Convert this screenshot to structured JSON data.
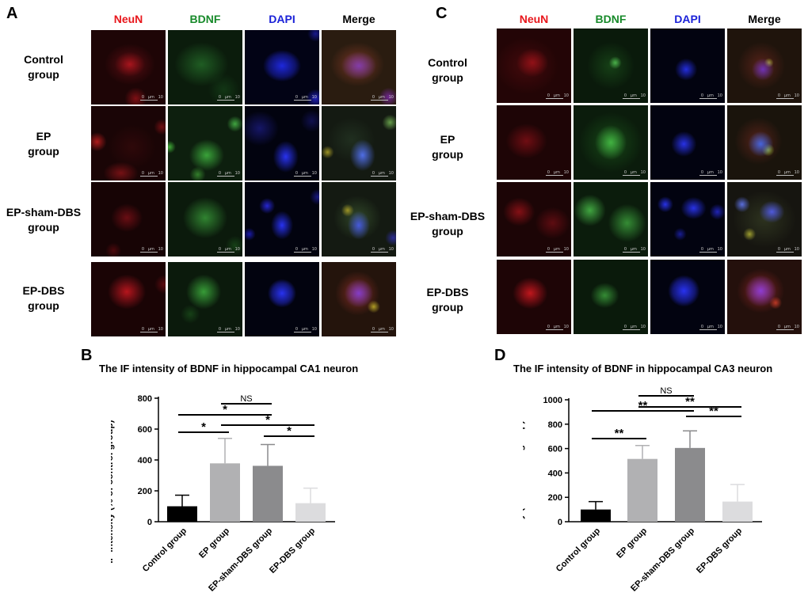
{
  "panels": {
    "a": "A",
    "b": "B",
    "c": "C",
    "d": "D"
  },
  "channels": [
    "NeuN",
    "BDNF",
    "DAPI",
    "Merge"
  ],
  "rows_left": [
    {
      "line1": "Control",
      "line2": "group"
    },
    {
      "line1": "EP",
      "line2": "group"
    },
    {
      "line1": "EP-sham-DBS",
      "line2": "group"
    },
    {
      "line1": "EP-DBS",
      "line2": "group"
    }
  ],
  "rows_right": [
    {
      "line1": "Control",
      "line2": "group"
    },
    {
      "line1": "EP",
      "line2": "group"
    },
    {
      "line1": "EP-sham-DBS",
      "line2": "group"
    },
    {
      "line1": "EP-DBS",
      "line2": "group"
    }
  ],
  "scale_text": "0   μm   10",
  "colors": {
    "neun": "#e8161b",
    "bdnf": "#178a2a",
    "dapi": "#1b22d8"
  },
  "chart_data": [
    {
      "type": "bar",
      "title": "The IF intensity of BDNF in hippocampal CA1 neuron",
      "ylabel": "IF intensity  (% of control group)",
      "categories": [
        "Control group",
        "EP group",
        "EP-sham-DBS group",
        "EP-DBS group"
      ],
      "values": [
        100,
        378,
        362,
        120
      ],
      "errors": [
        72,
        162,
        138,
        97
      ],
      "colors": [
        "#000000",
        "#b1b1b3",
        "#8b8b8d",
        "#dcdcde"
      ],
      "ylim": [
        0,
        800
      ],
      "yticks": [
        0,
        200,
        400,
        600,
        800
      ],
      "significance": [
        {
          "from": 1,
          "to": 2,
          "label": "NS"
        },
        {
          "from": 0,
          "to": 2,
          "label": "*"
        },
        {
          "from": 1,
          "to": 3,
          "label": "*"
        },
        {
          "from": 0,
          "to": 1,
          "label": "*"
        },
        {
          "from": 2,
          "to": 3,
          "label": "*"
        }
      ]
    },
    {
      "type": "bar",
      "title": "The IF intensity of BDNF in hippocampal CA3 neuron",
      "ylabel": "IF intensity  (% of control group)",
      "categories": [
        "Control group",
        "EP group",
        "EP-sham-DBS group",
        "EP-DBS group"
      ],
      "values": [
        100,
        515,
        605,
        165
      ],
      "errors": [
        65,
        110,
        140,
        140
      ],
      "colors": [
        "#000000",
        "#b1b1b3",
        "#8b8b8d",
        "#dcdcde"
      ],
      "ylim": [
        0,
        1000
      ],
      "yticks": [
        0,
        200,
        400,
        600,
        800,
        1000
      ],
      "significance": [
        {
          "from": 1,
          "to": 2,
          "label": "NS"
        },
        {
          "from": 1,
          "to": 3,
          "label": "**"
        },
        {
          "from": 0,
          "to": 2,
          "label": "**"
        },
        {
          "from": 2,
          "to": 3,
          "label": "**"
        },
        {
          "from": 0,
          "to": 1,
          "label": "**"
        }
      ]
    }
  ]
}
